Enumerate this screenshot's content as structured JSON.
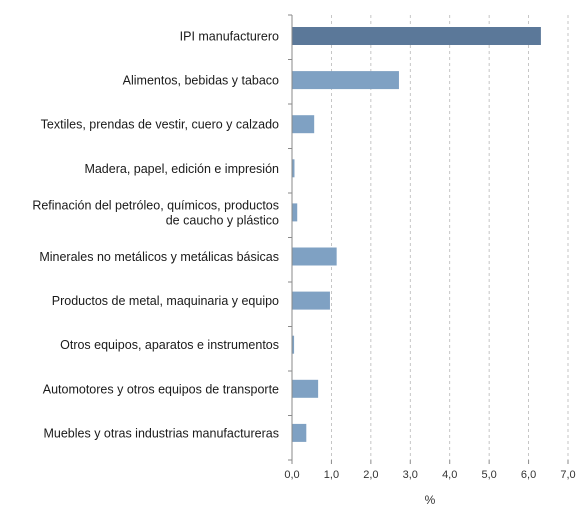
{
  "chart_data": {
    "type": "bar",
    "orientation": "horizontal",
    "categories": [
      [
        "IPI manufacturero"
      ],
      [
        "Alimentos, bebidas y tabaco"
      ],
      [
        "Textiles, prendas de vestir, cuero y calzado"
      ],
      [
        "Madera, papel, edición e impresión"
      ],
      [
        "Refinación del petróleo, químicos, productos",
        "de caucho y plástico"
      ],
      [
        "Minerales no metálicos y metálicas básicas"
      ],
      [
        "Productos de metal, maquinaria y equipo"
      ],
      [
        "Otros equipos, aparatos e instrumentos"
      ],
      [
        "Automotores y otros equipos de transporte"
      ],
      [
        "Muebles y otras industrias manufactureras"
      ]
    ],
    "values": [
      6.3,
      2.7,
      0.55,
      0.05,
      0.12,
      1.12,
      0.95,
      0.04,
      0.65,
      0.35
    ],
    "xlabel": "%",
    "xlim": [
      0,
      7
    ],
    "xticks": [
      "0,0",
      "1,0",
      "2,0",
      "3,0",
      "4,0",
      "5,0",
      "6,0",
      "7,0"
    ],
    "grid": "vertical-dashed",
    "colors": {
      "highlight": "#5b7899",
      "bar": "#7fa1c3",
      "grid": "#b8b8b8",
      "axis": "#8a8a8a"
    }
  }
}
